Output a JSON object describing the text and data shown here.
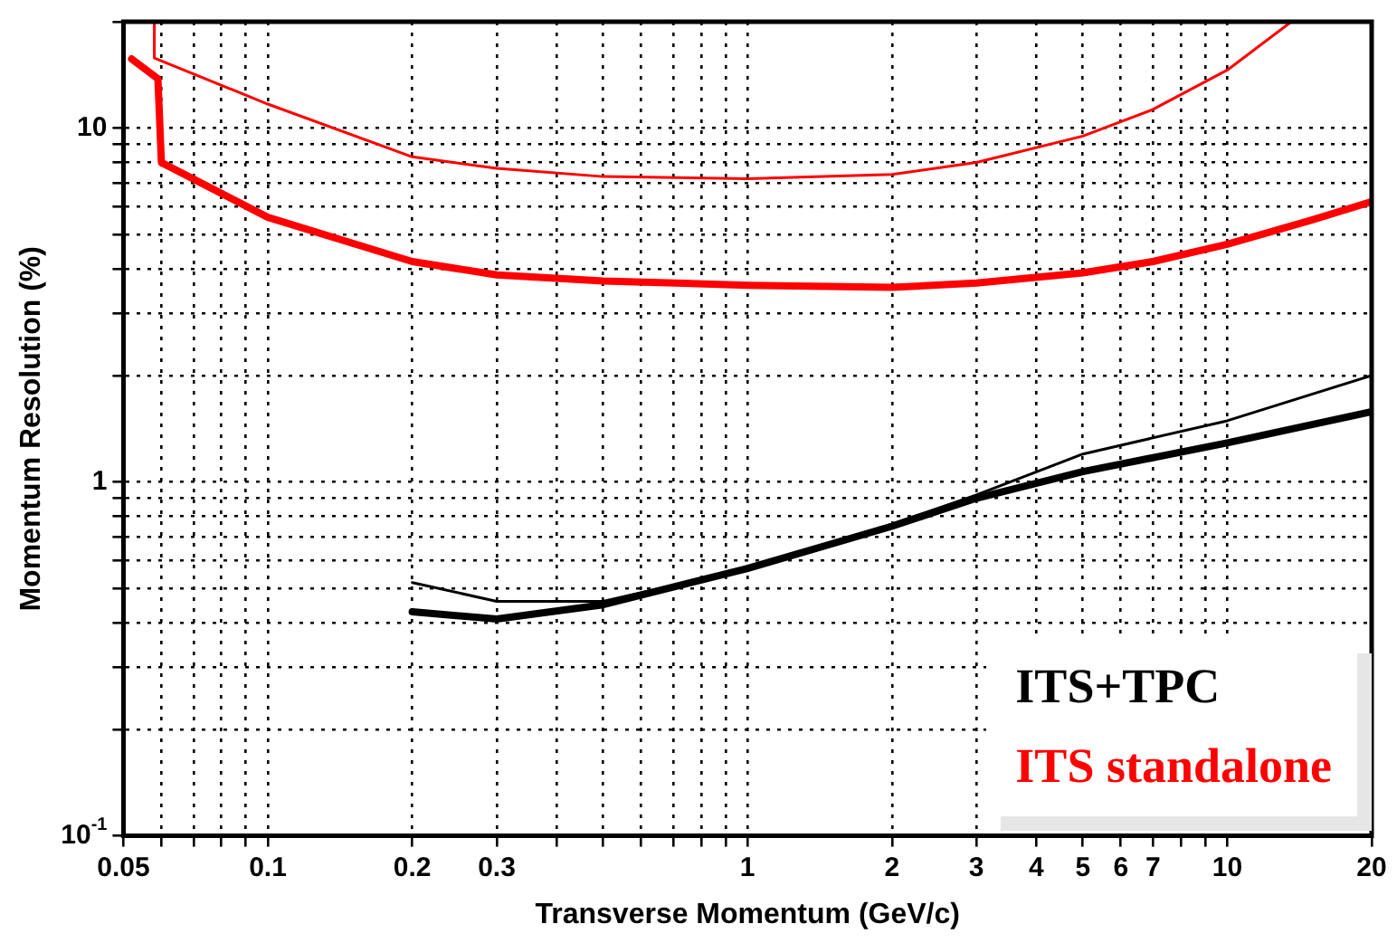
{
  "chart_data": {
    "type": "line",
    "xlabel": "Transverse Momentum (GeV/c)",
    "ylabel": "Momentum Resolution (%)",
    "log": "xy",
    "grid": true,
    "legend": "bottom right",
    "marker": "none",
    "xlim": [
      0.05,
      20
    ],
    "ylim": [
      0.1,
      20
    ],
    "xticks": [
      0.05,
      {
        "value": 0.06,
        "label": null
      },
      {
        "value": 0.07,
        "label": null
      },
      {
        "value": 0.08,
        "label": null
      },
      {
        "value": 0.09,
        "label": null
      },
      0.1,
      0.2,
      0.3,
      {
        "value": 0.4,
        "label": null
      },
      {
        "value": 0.5,
        "label": null
      },
      {
        "value": 0.6,
        "label": null
      },
      {
        "value": 0.7,
        "label": null
      },
      {
        "value": 0.8,
        "label": null
      },
      {
        "value": 0.9,
        "label": null
      },
      1,
      2,
      3,
      4,
      5,
      6,
      7,
      {
        "value": 8,
        "label": null
      },
      {
        "value": 9,
        "label": null
      },
      10,
      20
    ],
    "yticks": [
      {
        "value": 0.1,
        "label": "10$^{-1}$"
      },
      {
        "value": 0.2,
        "label": null
      },
      {
        "value": 0.3,
        "label": null
      },
      {
        "value": 0.4,
        "label": null
      },
      {
        "value": 0.5,
        "label": null
      },
      {
        "value": 0.6,
        "label": null
      },
      {
        "value": 0.7,
        "label": null
      },
      {
        "value": 0.8,
        "label": null
      },
      {
        "value": 0.9,
        "label": null
      },
      1,
      {
        "value": 2,
        "label": null
      },
      {
        "value": 3,
        "label": null
      },
      {
        "value": 4,
        "label": null
      },
      {
        "value": 5,
        "label": null
      },
      {
        "value": 6,
        "label": null
      },
      {
        "value": 7,
        "label": null
      },
      {
        "value": 8,
        "label": null
      },
      {
        "value": 9,
        "label": null
      },
      10,
      {
        "value": 20,
        "label": null
      }
    ],
    "series": [
      {
        "name": "ITS+TPC",
        "color": "#000000",
        "x": [
          0.2,
          0.3,
          0.5,
          1,
          2,
          3,
          5,
          10,
          20
        ],
        "values": [
          0.43,
          0.41,
          0.45,
          0.57,
          0.75,
          0.9,
          1.07,
          1.29,
          1.58
        ]
      },
      {
        "color": "#000000",
        "x": [
          0.2,
          0.3,
          0.5,
          1,
          2,
          3,
          5,
          10,
          20
        ],
        "values": [
          0.52,
          0.46,
          0.46,
          0.57,
          0.76,
          0.92,
          1.2,
          1.49,
          2.0
        ]
      },
      {
        "name": "ITS standalone",
        "color": "#ff0000",
        "x": [
          0.052,
          0.059,
          0.06,
          0.1,
          0.2,
          0.3,
          0.5,
          1,
          2,
          3,
          5,
          7,
          10,
          15,
          20
        ],
        "values": [
          15.7,
          13.8,
          8.0,
          5.6,
          4.2,
          3.85,
          3.7,
          3.6,
          3.55,
          3.65,
          3.9,
          4.2,
          4.7,
          5.5,
          6.2
        ]
      },
      {
        "color": "#ff0000",
        "x": [
          0.058,
          0.058,
          0.1,
          0.2,
          0.3,
          0.5,
          1,
          2,
          3,
          5,
          7,
          10,
          13.6
        ],
        "values": [
          20,
          15.8,
          11.7,
          8.3,
          7.7,
          7.3,
          7.2,
          7.4,
          8.0,
          9.5,
          11.3,
          14.6,
          20
        ]
      }
    ]
  }
}
